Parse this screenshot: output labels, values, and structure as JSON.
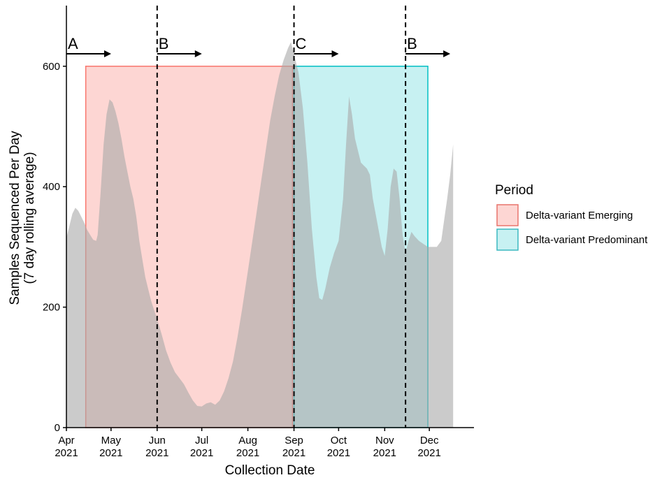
{
  "chart_data": {
    "type": "area",
    "title": "",
    "xlabel": "Collection Date",
    "ylabel": [
      "Samples Sequenced Per Day",
      "(7 day rolling average)"
    ],
    "xlim": [
      "2021-04-01",
      "2021-12-31"
    ],
    "ylim": [
      0,
      700
    ],
    "y_ticks": [
      0,
      200,
      400,
      600
    ],
    "x_ticks": [
      {
        "date": "2021-04-01",
        "line1": "Apr",
        "line2": "2021"
      },
      {
        "date": "2021-05-01",
        "line1": "May",
        "line2": "2021"
      },
      {
        "date": "2021-06-01",
        "line1": "Jun",
        "line2": "2021"
      },
      {
        "date": "2021-07-01",
        "line1": "Jul",
        "line2": "2021"
      },
      {
        "date": "2021-08-01",
        "line1": "Aug",
        "line2": "2021"
      },
      {
        "date": "2021-09-01",
        "line1": "Sep",
        "line2": "2021"
      },
      {
        "date": "2021-10-01",
        "line1": "Oct",
        "line2": "2021"
      },
      {
        "date": "2021-11-01",
        "line1": "Nov",
        "line2": "2021"
      },
      {
        "date": "2021-12-01",
        "line1": "Dec",
        "line2": "2021"
      }
    ],
    "grid": false,
    "legend": {
      "title": "Period",
      "placement": "right",
      "entries": [
        {
          "label": "Delta-variant Emerging",
          "fill": "#f8766d",
          "stroke": "#e8746c"
        },
        {
          "label": "Delta-variant Predominant",
          "fill": "#00bfc4",
          "stroke": "#3ab8c0"
        }
      ]
    },
    "periods": [
      {
        "name": "Delta-variant Emerging",
        "start": "2021-04-14",
        "end": "2021-08-31",
        "value": 600,
        "color": "#f8766d"
      },
      {
        "name": "Delta-variant Predominant",
        "start": "2021-09-01",
        "end": "2021-11-30",
        "value": 600,
        "color": "#00bfc4"
      }
    ],
    "phase_markers": [
      {
        "label": "A",
        "date": "2021-04-01",
        "dashed": false
      },
      {
        "label": "B",
        "date": "2021-06-01",
        "dashed": true
      },
      {
        "label": "C",
        "date": "2021-09-01",
        "dashed": true
      },
      {
        "label": "B",
        "date": "2021-11-15",
        "dashed": true
      }
    ],
    "series": [
      {
        "color": "#c8c8c8",
        "points": [
          [
            "2021-04-01",
            315
          ],
          [
            "2021-04-03",
            335
          ],
          [
            "2021-04-05",
            355
          ],
          [
            "2021-04-07",
            365
          ],
          [
            "2021-04-09",
            360
          ],
          [
            "2021-04-11",
            350
          ],
          [
            "2021-04-13",
            340
          ],
          [
            "2021-04-15",
            328
          ],
          [
            "2021-04-17",
            320
          ],
          [
            "2021-04-19",
            312
          ],
          [
            "2021-04-21",
            310
          ],
          [
            "2021-04-22",
            320
          ],
          [
            "2021-04-24",
            390
          ],
          [
            "2021-04-26",
            470
          ],
          [
            "2021-04-28",
            520
          ],
          [
            "2021-04-30",
            545
          ],
          [
            "2021-05-02",
            540
          ],
          [
            "2021-05-04",
            525
          ],
          [
            "2021-05-06",
            505
          ],
          [
            "2021-05-08",
            480
          ],
          [
            "2021-05-10",
            450
          ],
          [
            "2021-05-12",
            425
          ],
          [
            "2021-05-14",
            400
          ],
          [
            "2021-05-16",
            380
          ],
          [
            "2021-05-18",
            350
          ],
          [
            "2021-05-20",
            310
          ],
          [
            "2021-05-22",
            280
          ],
          [
            "2021-05-24",
            250
          ],
          [
            "2021-05-26",
            230
          ],
          [
            "2021-05-28",
            210
          ],
          [
            "2021-05-30",
            195
          ],
          [
            "2021-06-01",
            180
          ],
          [
            "2021-06-04",
            155
          ],
          [
            "2021-06-07",
            128
          ],
          [
            "2021-06-10",
            108
          ],
          [
            "2021-06-13",
            92
          ],
          [
            "2021-06-16",
            82
          ],
          [
            "2021-06-19",
            72
          ],
          [
            "2021-06-22",
            58
          ],
          [
            "2021-06-25",
            45
          ],
          [
            "2021-06-28",
            36
          ],
          [
            "2021-07-01",
            35
          ],
          [
            "2021-07-04",
            40
          ],
          [
            "2021-07-07",
            42
          ],
          [
            "2021-07-10",
            38
          ],
          [
            "2021-07-13",
            45
          ],
          [
            "2021-07-16",
            60
          ],
          [
            "2021-07-19",
            82
          ],
          [
            "2021-07-22",
            110
          ],
          [
            "2021-07-25",
            150
          ],
          [
            "2021-07-28",
            195
          ],
          [
            "2021-08-01",
            260
          ],
          [
            "2021-08-04",
            310
          ],
          [
            "2021-08-07",
            360
          ],
          [
            "2021-08-10",
            410
          ],
          [
            "2021-08-13",
            460
          ],
          [
            "2021-08-16",
            510
          ],
          [
            "2021-08-19",
            550
          ],
          [
            "2021-08-22",
            585
          ],
          [
            "2021-08-25",
            610
          ],
          [
            "2021-08-28",
            630
          ],
          [
            "2021-08-30",
            640
          ],
          [
            "2021-09-01",
            620
          ],
          [
            "2021-09-04",
            590
          ],
          [
            "2021-09-07",
            530
          ],
          [
            "2021-09-10",
            440
          ],
          [
            "2021-09-13",
            330
          ],
          [
            "2021-09-16",
            250
          ],
          [
            "2021-09-18",
            215
          ],
          [
            "2021-09-20",
            212
          ],
          [
            "2021-09-22",
            230
          ],
          [
            "2021-09-25",
            265
          ],
          [
            "2021-09-28",
            290
          ],
          [
            "2021-10-01",
            310
          ],
          [
            "2021-10-04",
            380
          ],
          [
            "2021-10-06",
            470
          ],
          [
            "2021-10-08",
            550
          ],
          [
            "2021-10-10",
            520
          ],
          [
            "2021-10-12",
            480
          ],
          [
            "2021-10-14",
            460
          ],
          [
            "2021-10-16",
            440
          ],
          [
            "2021-10-18",
            435
          ],
          [
            "2021-10-20",
            430
          ],
          [
            "2021-10-22",
            420
          ],
          [
            "2021-10-24",
            380
          ],
          [
            "2021-10-27",
            340
          ],
          [
            "2021-10-30",
            300
          ],
          [
            "2021-11-01",
            285
          ],
          [
            "2021-11-03",
            330
          ],
          [
            "2021-11-05",
            400
          ],
          [
            "2021-11-07",
            430
          ],
          [
            "2021-11-09",
            425
          ],
          [
            "2021-11-11",
            380
          ],
          [
            "2021-11-13",
            320
          ],
          [
            "2021-11-15",
            290
          ],
          [
            "2021-11-17",
            310
          ],
          [
            "2021-11-19",
            325
          ],
          [
            "2021-11-21",
            318
          ],
          [
            "2021-11-24",
            310
          ],
          [
            "2021-11-27",
            305
          ],
          [
            "2021-11-30",
            300
          ],
          [
            "2021-12-03",
            300
          ],
          [
            "2021-12-06",
            300
          ],
          [
            "2021-12-09",
            310
          ],
          [
            "2021-12-11",
            345
          ],
          [
            "2021-12-13",
            380
          ],
          [
            "2021-12-15",
            420
          ],
          [
            "2021-12-17",
            470
          ]
        ]
      }
    ]
  }
}
